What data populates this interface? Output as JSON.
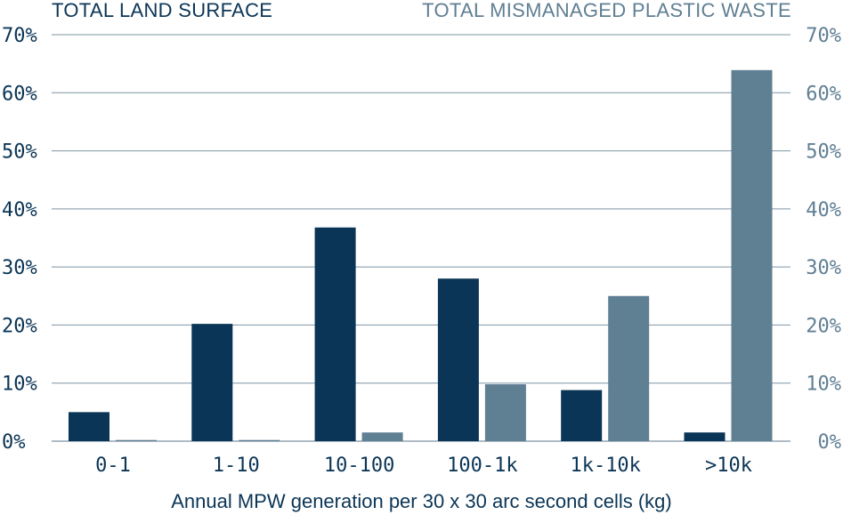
{
  "chart_data": {
    "type": "bar",
    "title": "",
    "xlabel": "Annual MPW generation per 30 x 30 arc second cells (kg)",
    "ylabel": "",
    "ylim": [
      0,
      70
    ],
    "yticks": [
      "0%",
      "10%",
      "20%",
      "30%",
      "40%",
      "50%",
      "60%",
      "70%"
    ],
    "categories": [
      "0-1",
      "1-10",
      "10-100",
      "100-1k",
      "1k-10k",
      ">10k"
    ],
    "series": [
      {
        "name": "TOTAL LAND SURFACE",
        "axis": "left",
        "color": "#0b3556",
        "values": [
          5.0,
          20.2,
          36.8,
          28.0,
          8.8,
          1.5
        ]
      },
      {
        "name": "TOTAL MISMANAGED PLASTIC WASTE",
        "axis": "right",
        "color": "#5f7f93",
        "values": [
          0.2,
          0.2,
          1.5,
          9.8,
          25.0,
          63.9
        ]
      }
    ],
    "grid": true
  },
  "colors": {
    "left_axis_text": "#0b3556",
    "right_axis_text": "#5f7f93",
    "grid": "#7f95a3"
  }
}
